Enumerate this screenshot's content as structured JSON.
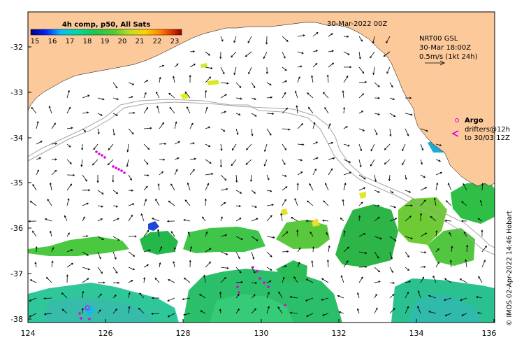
{
  "map": {
    "date_label": "30-Mar-2022 00Z",
    "colorbar": {
      "title": "4h comp, p50, All Sats",
      "ticks": [
        "15",
        "16",
        "17",
        "18",
        "19",
        "20",
        "21",
        "22",
        "23"
      ],
      "range": [
        15,
        23.5
      ],
      "colors": [
        "#00007f",
        "#0022ff",
        "#00bfff",
        "#00d9a8",
        "#19c750",
        "#4ccc33",
        "#bfe020",
        "#ffd200",
        "#ff8000",
        "#d83000",
        "#8b0000"
      ]
    },
    "currents_legend": {
      "line1": "NRT00 GSL",
      "line2": "30-Mar 18:00Z",
      "line3": "0.5m/s (1kt 24h)"
    },
    "argo_legend": {
      "argo_label": "Argo",
      "drifters_line1": "drifters@12h",
      "drifters_line2": "to 30/03 12Z"
    },
    "credit": "© IMOS 02-Apr-2022 14:46 Hobart",
    "x_ticks": [
      "124",
      "126",
      "128",
      "130",
      "132",
      "134",
      "136"
    ],
    "y_ticks": [
      "-32",
      "-33",
      "-34",
      "-35",
      "-36",
      "-37",
      "-38"
    ],
    "colors": {
      "land": "#fcc99b",
      "ocean": "#ffffff",
      "contour": "#a6a6a6",
      "argo": "#e000e0",
      "drifter": "#e000e0",
      "arrow": "#000000"
    }
  }
}
